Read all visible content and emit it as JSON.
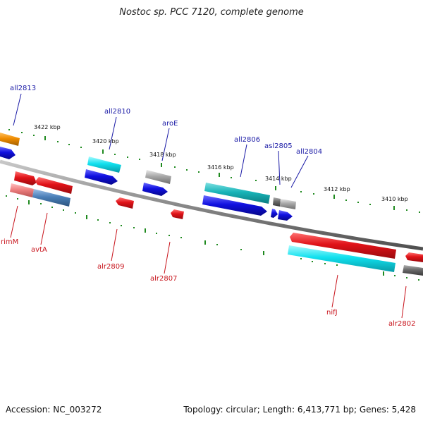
{
  "title": "Nostoc sp. PCC 7120, complete genome",
  "footer": {
    "accession": "Accession: NC_003272",
    "summary": "Topology: circular; Length: 6,413,771 bp; Genes: 5,428"
  },
  "ruler": [
    {
      "label": "3422 kbp"
    },
    {
      "label": "3420 kbp"
    },
    {
      "label": "3418 kbp"
    },
    {
      "label": "3416 kbp"
    },
    {
      "label": "3414 kbp"
    },
    {
      "label": "3412 kbp"
    },
    {
      "label": "3410 kbp"
    }
  ],
  "genes": {
    "all2813": "all2813",
    "all2810": "all2810",
    "aroE": "aroE",
    "all2806": "all2806",
    "asl2805": "asl2805",
    "all2804": "all2804",
    "rimM": "rimM",
    "avtA": "avtA",
    "alr2809": "alr2809",
    "alr2807": "alr2807",
    "nifJ": "nifJ",
    "alr2802": "alr2802"
  },
  "colors": {
    "backbone": "#8a8a8a",
    "tick": "#1f8a1f",
    "label_forward": "#c8141c",
    "label_reverse": "#1a1aa6",
    "red": "#e0141a",
    "blue": "#1010e0",
    "cyan": "#10e0ee",
    "teal": "#18b4b8",
    "orange": "#ef8c00",
    "gray": "#a8a8a8",
    "darkgray": "#707070",
    "steelblue": "#4a7fb8",
    "salmon": "#ef8080"
  }
}
